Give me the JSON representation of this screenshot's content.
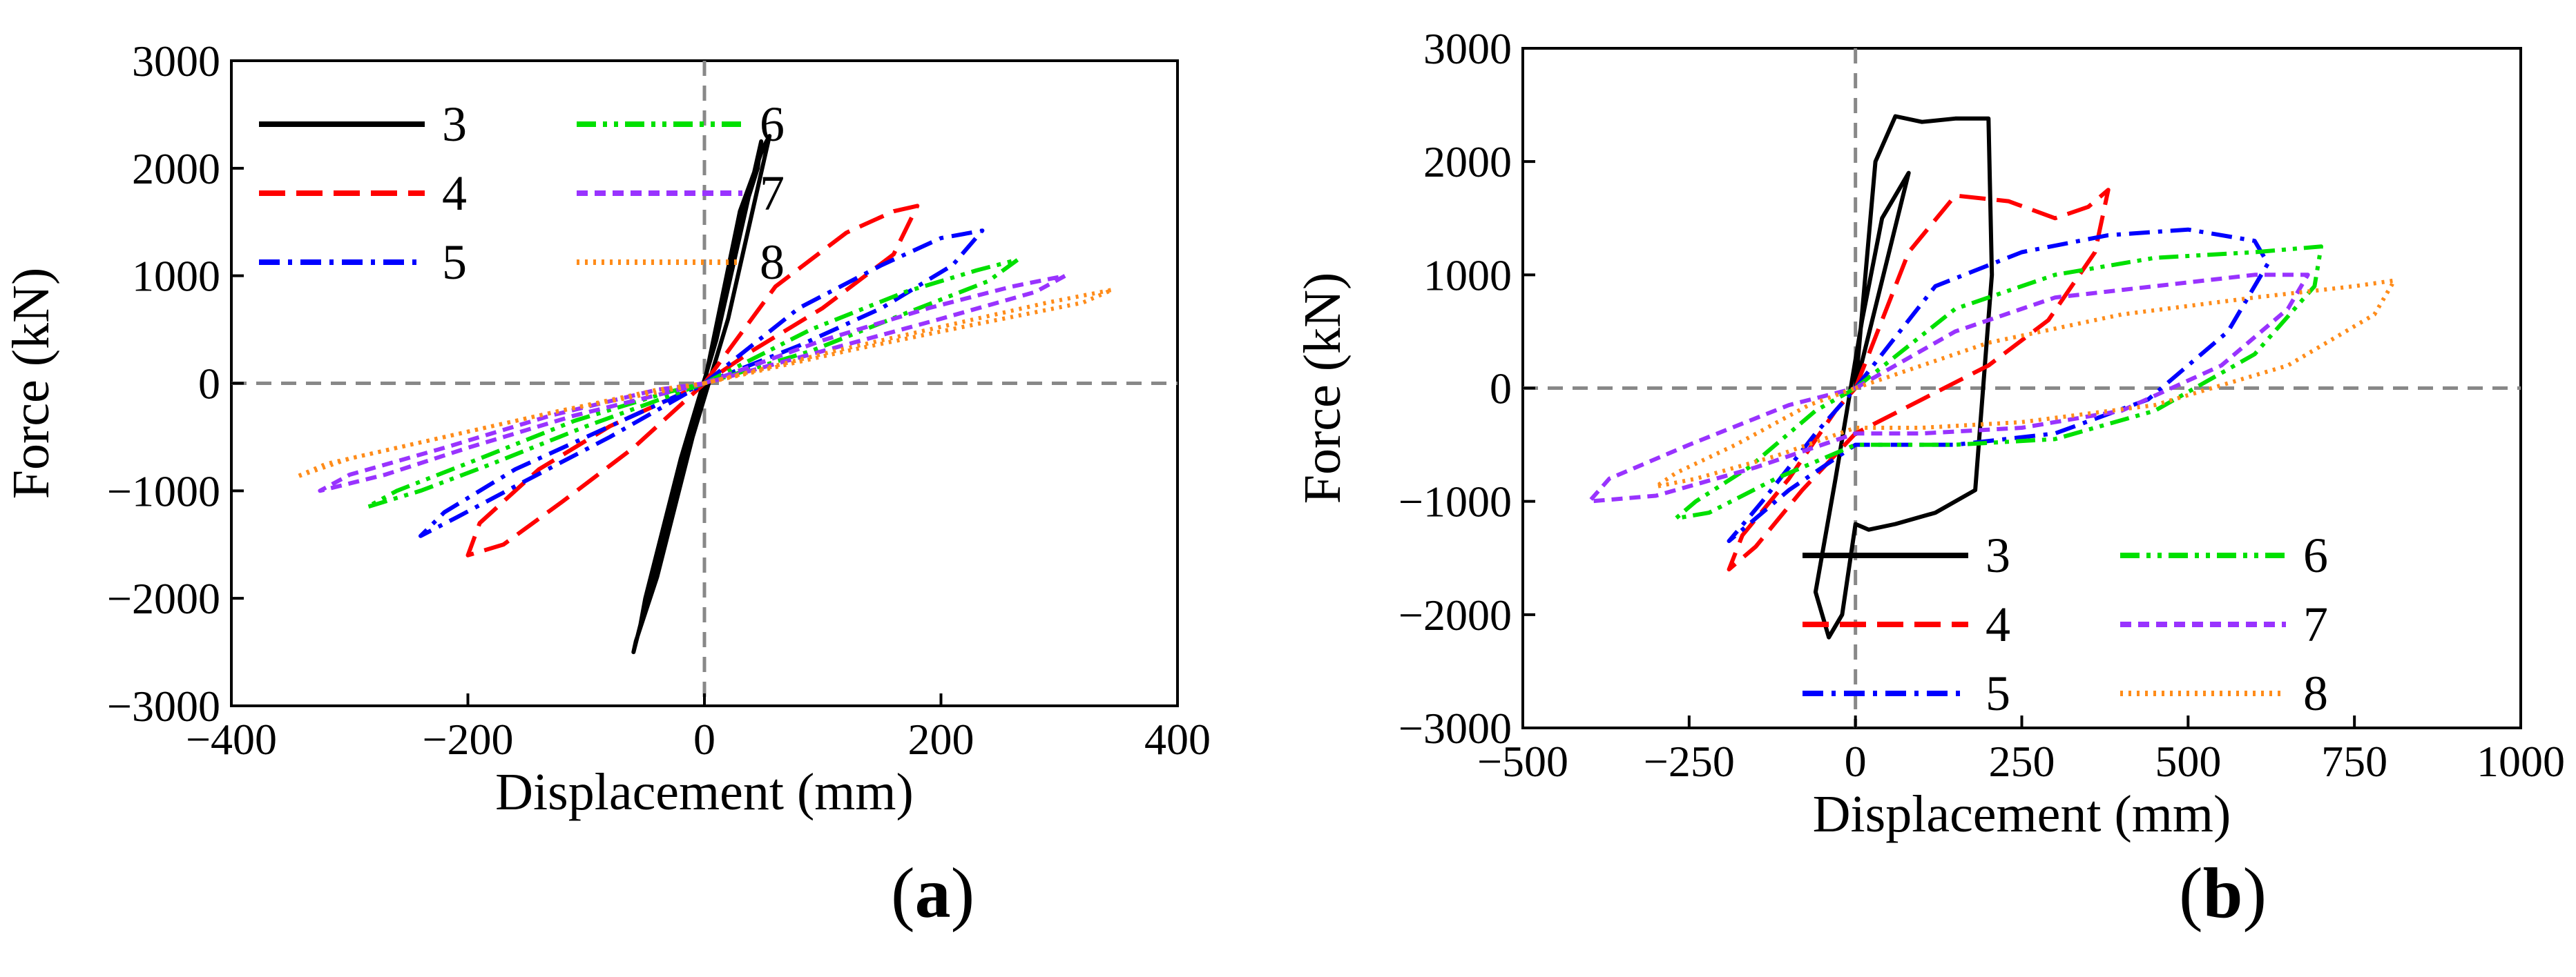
{
  "colors": {
    "3": "#000000",
    "4": "#ff0000",
    "5": "#0000ff",
    "6": "#00e000",
    "7": "#9933ff",
    "8": "#ff8c1a"
  },
  "captions": {
    "a": {
      "open": "(",
      "letter": "a",
      "close": ")"
    },
    "b": {
      "open": "(",
      "letter": "b",
      "close": ")"
    }
  },
  "chart_data": [
    {
      "id": "a",
      "type": "line",
      "xlabel": "Displacement (mm)",
      "ylabel": "Force (kN)",
      "xlim": [
        -400,
        400
      ],
      "ylim": [
        -3000,
        3000
      ],
      "xticks": [
        -400,
        -200,
        0,
        200,
        400
      ],
      "yticks": [
        -3000,
        -2000,
        -1000,
        0,
        1000,
        2000,
        3000
      ],
      "xtick_labels": [
        "−400",
        "−200",
        "0",
        "200",
        "400"
      ],
      "ytick_labels": [
        "−3000",
        "−2000",
        "−1000",
        "0",
        "1000",
        "2000",
        "3000"
      ],
      "legend_position": "top-left",
      "series": [
        {
          "name": "3",
          "style": "solid",
          "x": [
            0,
            30,
            50,
            55,
            20,
            -10,
            -40,
            -58,
            -60,
            -30,
            0,
            25,
            45,
            48,
            10,
            -20,
            -50,
            -55,
            0
          ],
          "y": [
            0,
            1600,
            2200,
            2300,
            600,
            -500,
            -1800,
            -2400,
            -2500,
            -1200,
            0,
            1300,
            2000,
            2250,
            400,
            -700,
            -2000,
            -2300,
            0
          ]
        },
        {
          "name": "4",
          "style": "dashed",
          "x": [
            0,
            60,
            120,
            160,
            180,
            160,
            100,
            40,
            0,
            -60,
            -120,
            -170,
            -200,
            -190,
            -140,
            -80,
            -20,
            0
          ],
          "y": [
            0,
            900,
            1400,
            1600,
            1650,
            1200,
            700,
            300,
            0,
            -600,
            -1100,
            -1500,
            -1600,
            -1300,
            -800,
            -400,
            -100,
            0
          ]
        },
        {
          "name": "5",
          "style": "dashdot",
          "x": [
            0,
            80,
            150,
            200,
            235,
            210,
            150,
            80,
            0,
            -80,
            -150,
            -210,
            -240,
            -220,
            -160,
            -90,
            -20,
            0
          ],
          "y": [
            0,
            700,
            1100,
            1350,
            1420,
            1100,
            700,
            350,
            0,
            -500,
            -900,
            -1250,
            -1420,
            -1200,
            -800,
            -450,
            -100,
            0
          ]
        },
        {
          "name": "6",
          "style": "dashdotdot",
          "x": [
            0,
            90,
            170,
            230,
            265,
            240,
            170,
            90,
            0,
            -100,
            -180,
            -240,
            -285,
            -260,
            -190,
            -110,
            -30,
            0
          ],
          "y": [
            0,
            500,
            850,
            1050,
            1150,
            950,
            650,
            300,
            0,
            -400,
            -750,
            -1000,
            -1150,
            -1000,
            -700,
            -350,
            -80,
            0
          ]
        },
        {
          "name": "7",
          "style": "shortdash",
          "x": [
            0,
            100,
            190,
            260,
            305,
            280,
            200,
            100,
            0,
            -110,
            -200,
            -270,
            -325,
            -300,
            -220,
            -130,
            -40,
            0
          ],
          "y": [
            0,
            400,
            700,
            900,
            1000,
            850,
            600,
            300,
            0,
            -300,
            -600,
            -850,
            -1000,
            -850,
            -600,
            -300,
            -60,
            0
          ]
        },
        {
          "name": "8",
          "style": "dotted",
          "x": [
            0,
            110,
            210,
            290,
            345,
            320,
            230,
            120,
            0,
            -120,
            -220,
            -300,
            -345,
            -320,
            -240,
            -140,
            -40,
            0
          ],
          "y": [
            0,
            300,
            550,
            750,
            870,
            750,
            550,
            300,
            0,
            -250,
            -500,
            -700,
            -870,
            -750,
            -550,
            -300,
            -60,
            0
          ]
        }
      ]
    },
    {
      "id": "b",
      "type": "line",
      "xlabel": "Displacement (mm)",
      "ylabel": "Force (kN)",
      "xlim": [
        -500,
        1000
      ],
      "ylim": [
        -3000,
        3000
      ],
      "xticks": [
        -500,
        -250,
        0,
        250,
        500,
        750,
        1000
      ],
      "yticks": [
        -3000,
        -2000,
        -1000,
        0,
        1000,
        2000,
        3000
      ],
      "xtick_labels": [
        "−500",
        "−250",
        "0",
        "250",
        "500",
        "750",
        "1000"
      ],
      "ytick_labels": [
        "−3000",
        "−2000",
        "−1000",
        "0",
        "1000",
        "2000",
        "3000"
      ],
      "legend_position": "bottom-right",
      "series": [
        {
          "name": "3",
          "style": "solid",
          "x": [
            0,
            30,
            60,
            100,
            150,
            200,
            205,
            180,
            120,
            60,
            20,
            0,
            -20,
            -40,
            -60,
            -30,
            10,
            40,
            80,
            0
          ],
          "y": [
            0,
            2000,
            2400,
            2350,
            2380,
            2380,
            1000,
            -900,
            -1100,
            -1200,
            -1250,
            -1200,
            -2000,
            -2200,
            -1800,
            -800,
            600,
            1500,
            1900,
            0
          ]
        },
        {
          "name": "4",
          "style": "dashed",
          "x": [
            0,
            80,
            150,
            230,
            300,
            350,
            380,
            360,
            290,
            200,
            100,
            0,
            -80,
            -150,
            -190,
            -170,
            -100,
            -30,
            0
          ],
          "y": [
            0,
            1200,
            1700,
            1650,
            1500,
            1600,
            1750,
            1200,
            600,
            200,
            -100,
            -400,
            -900,
            -1400,
            -1600,
            -1300,
            -800,
            -200,
            0
          ]
        },
        {
          "name": "5",
          "style": "dashdot",
          "x": [
            0,
            120,
            250,
            380,
            500,
            600,
            620,
            560,
            440,
            300,
            150,
            0,
            -100,
            -180,
            -190,
            -140,
            -60,
            0
          ],
          "y": [
            0,
            900,
            1200,
            1350,
            1400,
            1300,
            1100,
            500,
            -100,
            -400,
            -500,
            -500,
            -900,
            -1300,
            -1350,
            -1000,
            -400,
            0
          ]
        },
        {
          "name": "6",
          "style": "dashdotdot",
          "x": [
            0,
            150,
            300,
            450,
            600,
            700,
            690,
            600,
            450,
            300,
            150,
            0,
            -120,
            -220,
            -270,
            -240,
            -160,
            -60,
            0
          ],
          "y": [
            0,
            700,
            1000,
            1150,
            1200,
            1250,
            900,
            300,
            -200,
            -450,
            -500,
            -500,
            -800,
            -1100,
            -1150,
            -1000,
            -700,
            -200,
            0
          ]
        },
        {
          "name": "7",
          "style": "shortdash",
          "x": [
            0,
            150,
            300,
            450,
            600,
            680,
            650,
            550,
            400,
            250,
            100,
            0,
            -150,
            -300,
            -400,
            -370,
            -250,
            -100,
            0
          ],
          "y": [
            0,
            500,
            800,
            900,
            1000,
            1000,
            700,
            200,
            -200,
            -350,
            -400,
            -400,
            -700,
            -950,
            -1000,
            -800,
            -500,
            -150,
            0
          ]
        },
        {
          "name": "8",
          "style": "dotted",
          "x": [
            0,
            200,
            400,
            600,
            750,
            810,
            780,
            650,
            450,
            250,
            100,
            0,
            -120,
            -240,
            -300,
            -270,
            -180,
            -70,
            0
          ],
          "y": [
            0,
            400,
            650,
            800,
            900,
            950,
            650,
            200,
            -150,
            -300,
            -350,
            -350,
            -600,
            -800,
            -870,
            -750,
            -500,
            -150,
            0
          ]
        }
      ]
    }
  ]
}
